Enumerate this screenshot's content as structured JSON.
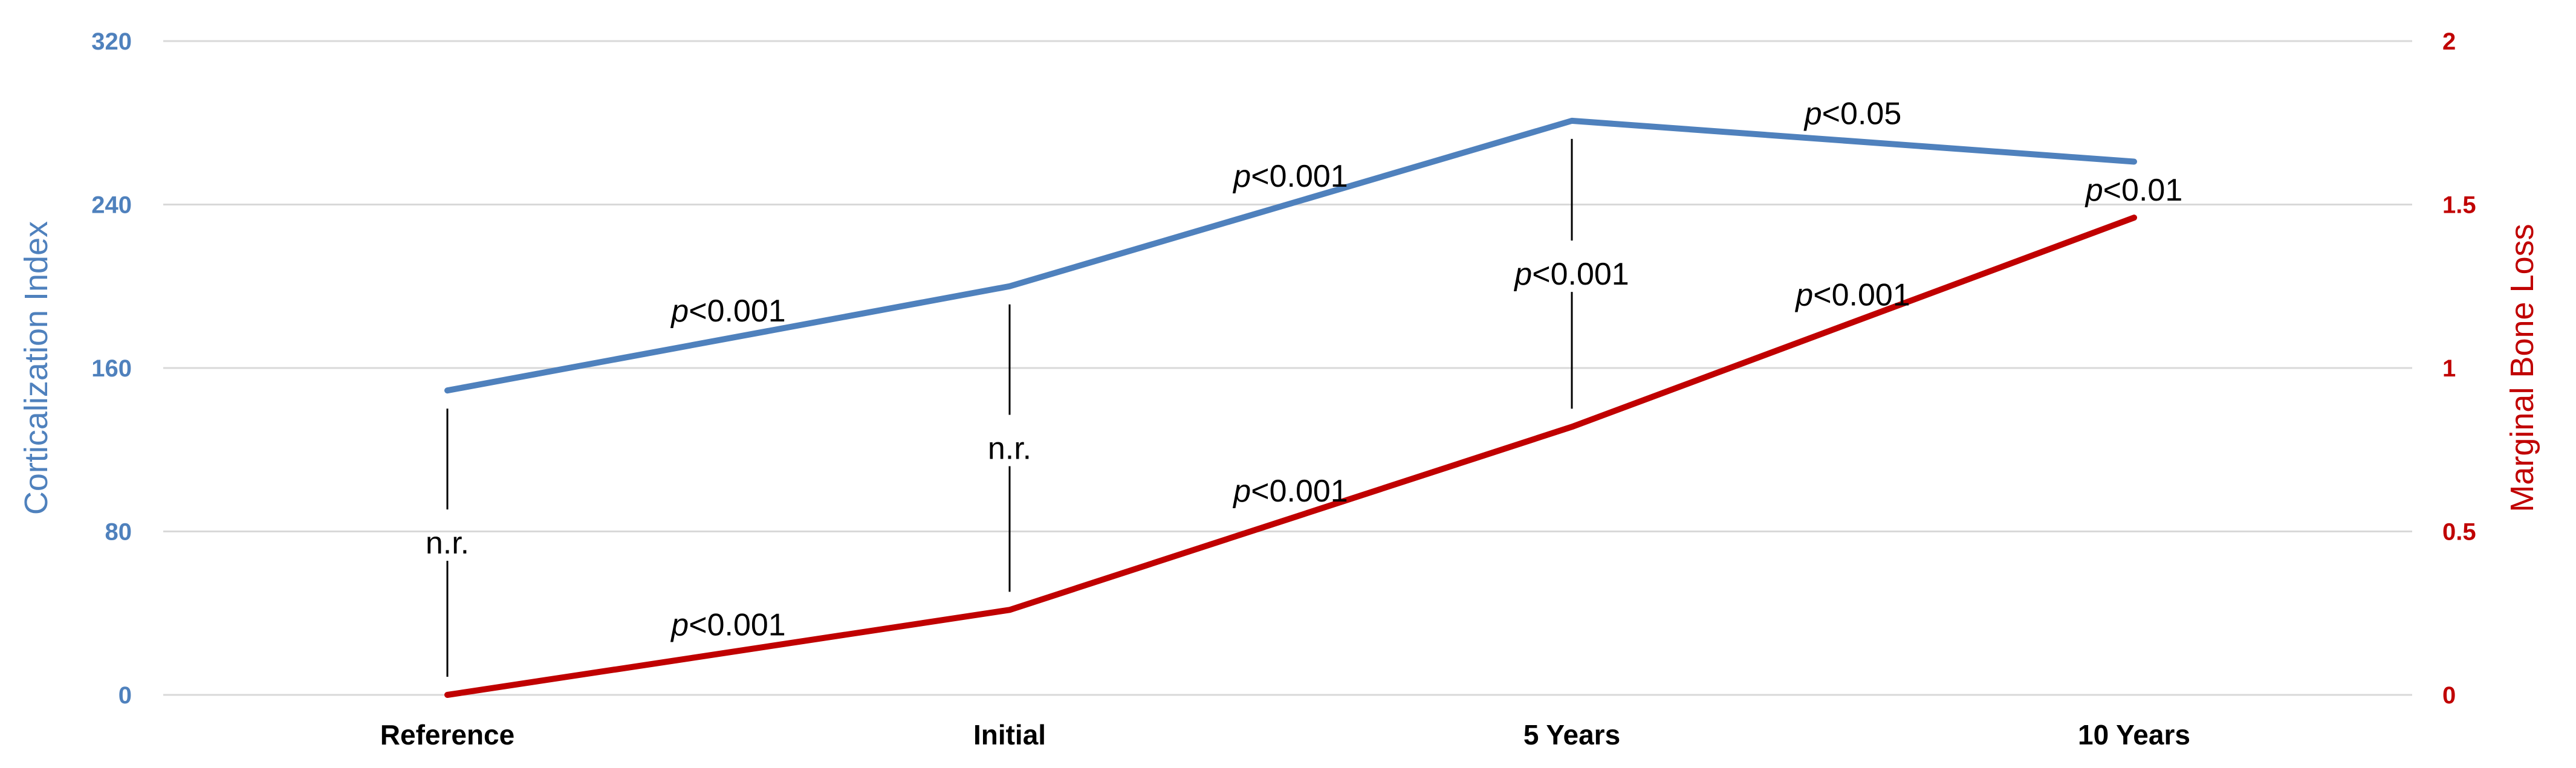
{
  "chart_data": {
    "type": "line",
    "categories": [
      "Reference",
      "Initial",
      "5 Years",
      "10 Years"
    ],
    "y_left": {
      "label": "Corticalization Index",
      "ylim": [
        0,
        320
      ],
      "ticks": [
        "0",
        "80",
        "160",
        "240",
        "320"
      ],
      "color": "#4f81bd"
    },
    "y_right": {
      "label": "Marginal Bone Loss",
      "ylim": [
        0,
        2
      ],
      "ticks": [
        "0",
        "0.5",
        "1",
        "1.5",
        "2"
      ],
      "color": "#c00000"
    },
    "series": [
      {
        "name": "Corticalization Index",
        "axis": "left",
        "color": "#4f81bd",
        "values": [
          149,
          200,
          281,
          261
        ]
      },
      {
        "name": "Marginal Bone Loss",
        "axis": "right",
        "color": "#c00000",
        "values": [
          0,
          0.26,
          0.82,
          1.46
        ]
      }
    ],
    "grid": true,
    "annotations": {
      "ci_segments": [
        {
          "between": [
            "Reference",
            "Initial"
          ],
          "prefix": "p",
          "text": "<0.001"
        },
        {
          "between": [
            "Initial",
            "5 Years"
          ],
          "prefix": "p",
          "text": "<0.001"
        },
        {
          "between": [
            "5 Years",
            "10 Years"
          ],
          "prefix": "p",
          "text": "<0.05"
        }
      ],
      "mbl_segments": [
        {
          "between": [
            "Reference",
            "Initial"
          ],
          "prefix": "p",
          "text": "<0.001"
        },
        {
          "between": [
            "Initial",
            "5 Years"
          ],
          "prefix": "p",
          "text": "<0.001"
        },
        {
          "between": [
            "5 Years",
            "10 Years"
          ],
          "prefix": "p",
          "text": "<0.001"
        }
      ],
      "correlations": [
        {
          "category": "Reference",
          "prefix": "",
          "text": "n.r."
        },
        {
          "category": "Initial",
          "prefix": "",
          "text": "n.r."
        },
        {
          "category": "5 Years",
          "prefix": "p",
          "text": "<0.001"
        },
        {
          "category": "10 Years",
          "prefix": "p",
          "text": "<0.01"
        }
      ]
    }
  }
}
